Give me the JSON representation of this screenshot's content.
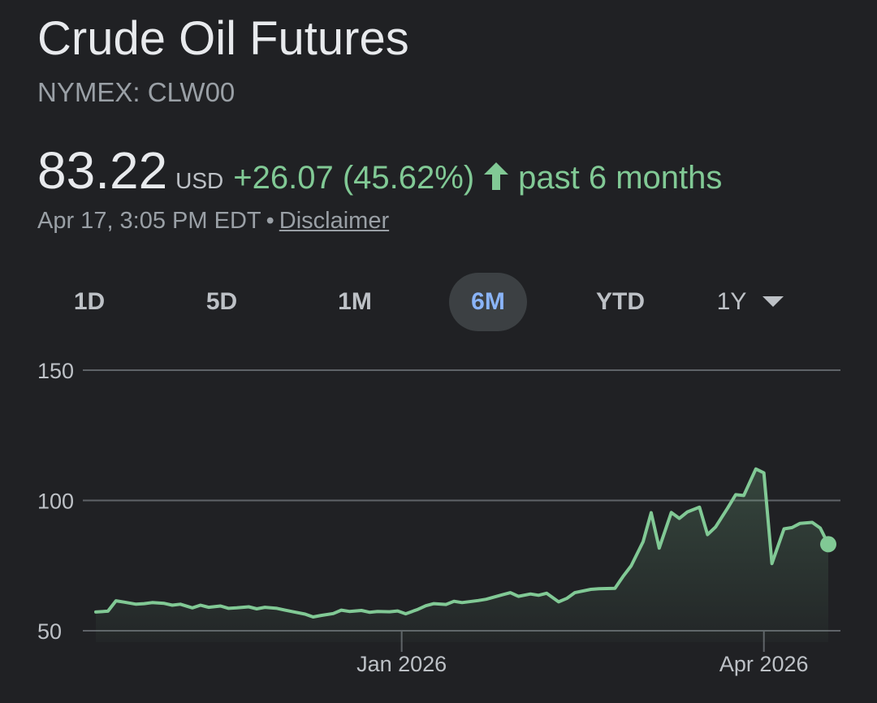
{
  "header": {
    "title": "Crude Oil Futures",
    "ticker": "NYMEX: CLW00"
  },
  "quote": {
    "price": "83.22",
    "currency": "USD",
    "change": "+26.07 (45.62%)",
    "direction_icon": "arrow-up-icon",
    "period": "past 6 months",
    "timestamp": "Apr 17, 3:05 PM EDT",
    "separator": "•",
    "disclaimer": "Disclaimer"
  },
  "range_tabs": {
    "items": [
      "1D",
      "5D",
      "1M",
      "6M",
      "YTD",
      "1Y"
    ],
    "selected": "6M",
    "dropdown_icon": "chevron-down-icon"
  },
  "colors": {
    "positive": "#81c995",
    "selected_tab_text": "#8ab4f8",
    "selected_tab_bg": "#3c4043",
    "background": "#202124",
    "gridline": "#5f6368"
  },
  "chart_data": {
    "type": "area",
    "title": "",
    "xlabel": "",
    "ylabel": "",
    "ylim": [
      50,
      150
    ],
    "y_ticks": [
      50,
      100,
      150
    ],
    "x_ticks": [
      {
        "label": "Jan 2026",
        "date": "2026-01-01"
      },
      {
        "label": "Apr 2026",
        "date": "2026-04-01"
      }
    ],
    "grid": true,
    "series": [
      {
        "x": [
          "2025-10-17",
          "2025-10-20",
          "2025-10-22",
          "2025-10-24",
          "2025-10-27",
          "2025-10-29",
          "2025-10-31",
          "2025-11-03",
          "2025-11-05",
          "2025-11-07",
          "2025-11-10",
          "2025-11-12",
          "2025-11-14",
          "2025-11-17",
          "2025-11-19",
          "2025-11-21",
          "2025-11-24",
          "2025-11-26",
          "2025-11-28",
          "2025-12-01",
          "2025-12-03",
          "2025-12-05",
          "2025-12-08",
          "2025-12-10",
          "2025-12-12",
          "2025-12-15",
          "2025-12-17",
          "2025-12-19",
          "2025-12-22",
          "2025-12-24",
          "2025-12-26",
          "2025-12-29",
          "2025-12-31",
          "2026-01-02",
          "2026-01-05",
          "2026-01-07",
          "2026-01-09",
          "2026-01-12",
          "2026-01-14",
          "2026-01-16",
          "2026-01-20",
          "2026-01-22",
          "2026-01-26",
          "2026-01-28",
          "2026-01-30",
          "2026-02-02",
          "2026-02-04",
          "2026-02-06",
          "2026-02-09",
          "2026-02-11",
          "2026-02-13",
          "2026-02-17",
          "2026-02-19",
          "2026-02-23",
          "2026-02-25",
          "2026-02-27",
          "2026-03-02",
          "2026-03-04",
          "2026-03-06",
          "2026-03-09",
          "2026-03-11",
          "2026-03-13",
          "2026-03-16",
          "2026-03-18",
          "2026-03-20",
          "2026-03-23",
          "2026-03-25",
          "2026-03-27",
          "2026-03-30",
          "2026-04-01",
          "2026-04-03",
          "2026-04-06",
          "2026-04-08",
          "2026-04-10",
          "2026-04-13",
          "2026-04-15",
          "2026-04-17"
        ],
        "values": [
          57.2,
          57.5,
          61.5,
          61.0,
          60.2,
          60.4,
          60.8,
          60.5,
          59.8,
          60.2,
          58.8,
          59.8,
          59.0,
          59.5,
          58.6,
          58.8,
          59.2,
          58.4,
          59.0,
          58.6,
          57.9,
          57.3,
          56.4,
          55.3,
          55.9,
          56.6,
          57.9,
          57.4,
          57.8,
          57.1,
          57.4,
          57.3,
          57.6,
          56.5,
          58.2,
          59.6,
          60.4,
          60.1,
          61.3,
          60.8,
          61.6,
          62.1,
          63.8,
          64.6,
          63.2,
          64.1,
          63.6,
          64.4,
          61.1,
          62.4,
          64.6,
          65.9,
          66.1,
          66.3,
          70.8,
          74.9,
          84.2,
          95.3,
          81.7,
          95.4,
          93.1,
          95.6,
          97.4,
          86.9,
          89.8,
          97.1,
          102.2,
          101.9,
          112.1,
          110.6,
          75.8,
          89.1,
          89.6,
          91.2,
          91.6,
          89.4,
          83.22
        ]
      }
    ]
  }
}
